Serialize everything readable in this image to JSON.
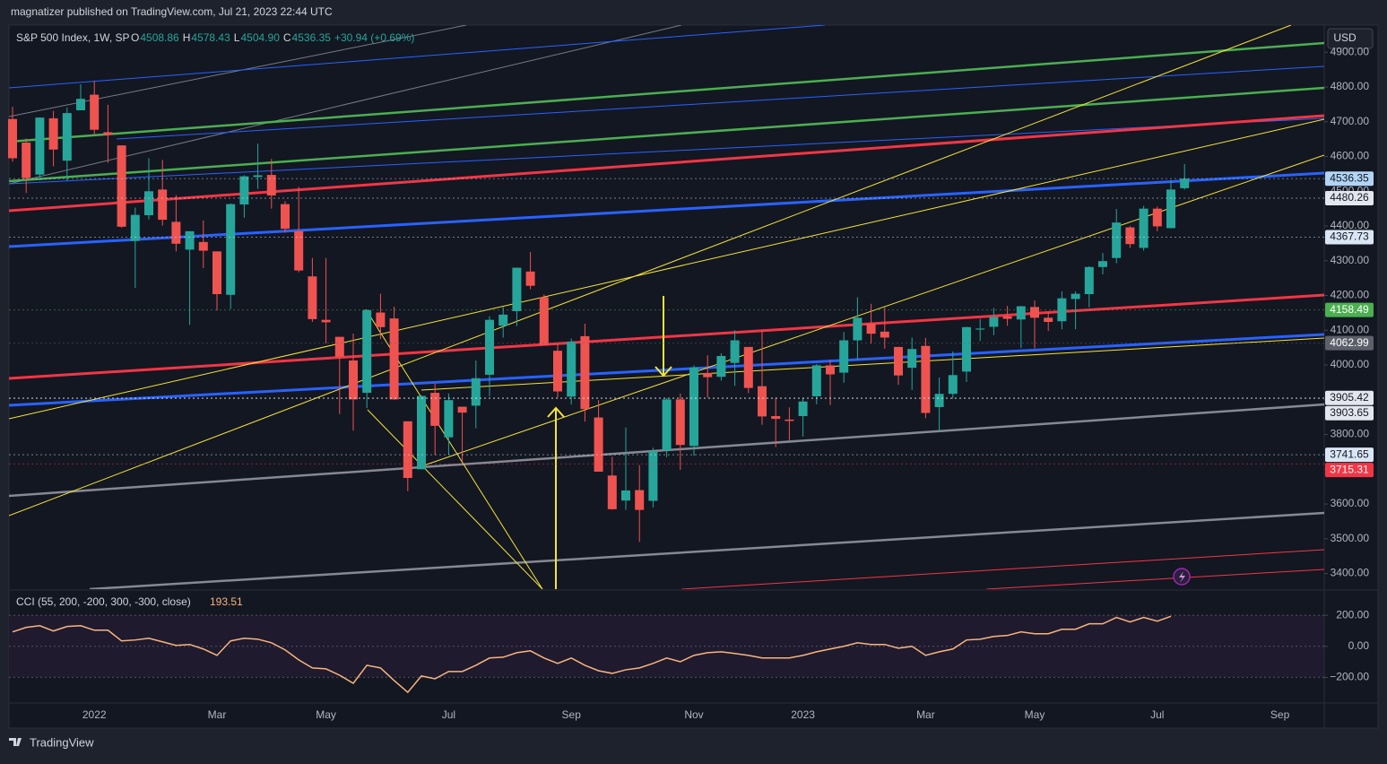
{
  "header": {
    "text": "magnatizer published on TradingView.com, Jul 21, 2023 22:44 UTC"
  },
  "brand": "TradingView",
  "chart_data": [
    {
      "type": "candlestick",
      "title": "S&P 500 Index, 1W, SP",
      "ohlc_legend": [
        {
          "key": "O",
          "value": "4508.86"
        },
        {
          "key": "H",
          "value": "4578.43"
        },
        {
          "key": "L",
          "value": "4504.90"
        },
        {
          "key": "C",
          "value": "4536.35"
        }
      ],
      "change": "+30.94 (+0.69%)",
      "currency": "USD",
      "categories": [
        null,
        null,
        null,
        null,
        null,
        null,
        "2022",
        null,
        null,
        null,
        null,
        null,
        null,
        null,
        null,
        "Mar",
        null,
        null,
        null,
        null,
        null,
        null,
        null,
        "May",
        null,
        null,
        null,
        null,
        null,
        null,
        null,
        null,
        "Jul",
        null,
        null,
        null,
        null,
        null,
        null,
        null,
        null,
        "Sep",
        null,
        null,
        null,
        null,
        null,
        null,
        null,
        null,
        "Nov",
        null,
        null,
        null,
        null,
        null,
        null,
        null,
        "2023",
        null,
        null,
        null,
        null,
        null,
        null,
        null,
        null,
        "Mar",
        null,
        null,
        null,
        null,
        null,
        null,
        null,
        "May",
        null,
        null,
        null,
        null,
        null,
        null,
        null,
        null,
        "Jul",
        null,
        null,
        null,
        null,
        null,
        null,
        null,
        null,
        "Sep",
        null,
        null,
        null
      ],
      "open": [
        4708,
        4640,
        4548,
        4710,
        4588,
        4733,
        4778,
        4670,
        4632,
        4357,
        4431,
        4505,
        4412,
        4332,
        4354,
        4327,
        4202,
        4462,
        4541,
        4547,
        4463,
        4385,
        4255,
        4130,
        4081,
        4013,
        3920,
        4151,
        4134,
        3838,
        3700,
        3920,
        3792,
        3880,
        3883,
        3972,
        4113,
        4155,
        4269,
        4195,
        4041,
        3909,
        4083,
        3849,
        3682,
        3610,
        3640,
        3609,
        3755,
        3901,
        3767,
        3977,
        3966,
        4006,
        4052,
        3939,
        3853,
        3843,
        3853,
        3910,
        3999,
        3978,
        4071,
        4119,
        4096,
        4052,
        3992,
        4055,
        3879,
        3917,
        3981,
        4102,
        4110,
        4140,
        4131,
        4167,
        4136,
        4126,
        4190,
        4204,
        4282,
        4308,
        4396,
        4337,
        4450,
        4394,
        4508.86,
        null,
        null,
        null,
        null,
        null,
        null,
        null,
        null,
        null,
        null
      ],
      "high": [
        4743,
        4652,
        4713,
        4731,
        4741,
        4808,
        4818,
        4749,
        4632,
        4453,
        4595,
        4590,
        4489,
        4385,
        4416,
        4327,
        4465,
        4546,
        4637,
        4593,
        4471,
        4513,
        4308,
        4308,
        4081,
        4090,
        4159,
        4205,
        4168,
        3838,
        3913,
        3946,
        3918,
        3880,
        4013,
        4140,
        4167,
        4280,
        4325,
        4203,
        4062,
        4076,
        4119,
        3899,
        3736,
        3820,
        3712,
        3762,
        3905,
        3918,
        3999,
        4028,
        4034,
        4100,
        4052,
        4101,
        3906,
        3878,
        3906,
        4003,
        4015,
        4095,
        4195,
        4176,
        4166,
        4052,
        4079,
        4078,
        3964,
        4039,
        4110,
        4133,
        4164,
        4170,
        4170,
        4186,
        4154,
        4212,
        4212,
        4284,
        4322,
        4449,
        4400,
        4458,
        4456,
        4532,
        4578.43,
        null,
        null,
        null,
        null,
        null,
        null,
        null,
        null,
        null,
        null
      ],
      "low": [
        4585,
        4495,
        4531,
        4572,
        4531,
        4733,
        4662,
        4582,
        4395,
        4222,
        4419,
        4401,
        4327,
        4115,
        4279,
        4157,
        4161,
        4424,
        4507,
        4450,
        4381,
        4267,
        4124,
        4062,
        3859,
        3811,
        3876,
        4075,
        3900,
        3637,
        3700,
        3741,
        3742,
        3721,
        3818,
        3910,
        4079,
        4112,
        4218,
        4057,
        3906,
        3886,
        3837,
        3693,
        3584,
        3583,
        3491,
        3590,
        3735,
        3698,
        3739,
        3906,
        3955,
        3940,
        3919,
        3828,
        3764,
        3783,
        3794,
        3887,
        3885,
        3949,
        4015,
        4061,
        4047,
        3943,
        3928,
        3847,
        3809,
        3903,
        3951,
        4069,
        4086,
        4113,
        4049,
        4048,
        4098,
        4103,
        4103,
        4166,
        4261,
        4293,
        4337,
        4329,
        4385,
        4393,
        4504.9,
        null,
        null,
        null,
        null,
        null,
        null,
        null,
        null,
        null,
        null
      ],
      "close": [
        4595,
        4538,
        4712,
        4620,
        4725,
        4766,
        4677,
        4662,
        4398,
        4432,
        4500,
        4418,
        4349,
        4385,
        4329,
        4204,
        4463,
        4543,
        4546,
        4488,
        4392,
        4272,
        4132,
        4123,
        4024,
        3901,
        4158,
        4109,
        3901,
        3675,
        3911,
        3825,
        3899,
        3863,
        3962,
        4130,
        4145,
        4280,
        4228,
        4057,
        3924,
        4067,
        3873,
        3693,
        3585,
        3639,
        3583,
        3752,
        3901,
        3770,
        3993,
        3965,
        4026,
        4071,
        3934,
        3852,
        3845,
        3839,
        3895,
        3999,
        3973,
        4071,
        4136,
        4090,
        4079,
        3970,
        4046,
        3862,
        3917,
        3971,
        4109,
        4105,
        4138,
        4133,
        4169,
        4136,
        4124,
        4192,
        4205,
        4282,
        4299,
        4410,
        4348,
        4450,
        4399,
        4505,
        4536.35,
        null,
        null,
        null,
        null,
        null,
        null,
        null,
        null,
        null,
        null
      ],
      "up_color": "#26a69a",
      "down_color": "#ef5350",
      "ylim": [
        3355,
        4973
      ],
      "yticks": [
        {
          "value": 3400,
          "label": "3400.00"
        },
        {
          "value": 3500,
          "label": "3500.00"
        },
        {
          "value": 3600,
          "label": "3600.00"
        },
        {
          "value": 3700,
          "label": "3700.00"
        },
        {
          "value": 3800,
          "label": "3800.00"
        },
        {
          "value": 3900,
          "label": "3900.00"
        },
        {
          "value": 4000,
          "label": "4000.00"
        },
        {
          "value": 4100,
          "label": "4100.00"
        },
        {
          "value": 4200,
          "label": "4200.00"
        },
        {
          "value": 4300,
          "label": "4300.00"
        },
        {
          "value": 4400,
          "label": "4400.00"
        },
        {
          "value": 4500,
          "label": "4500.00"
        },
        {
          "value": 4600,
          "label": "4600.00"
        },
        {
          "value": 4700,
          "label": "4700.00"
        },
        {
          "value": 4800,
          "label": "4800.00"
        },
        {
          "value": 4900,
          "label": "4900.00"
        }
      ],
      "price_markers": [
        {
          "value": 4536.35,
          "color": "#b2d4f5"
        },
        {
          "value": 4480.26,
          "color": "#e3e6ee"
        },
        {
          "value": 4367.73,
          "color": "#dbe6f5"
        },
        {
          "value": 4158.49,
          "color": "#4caf50"
        },
        {
          "value": 4062.99,
          "color": "#5d606b"
        },
        {
          "value": 3905.42,
          "color": "#e3e6ee"
        },
        {
          "value": 3903.65,
          "color": "#e3e6ee"
        },
        {
          "value": 3741.65,
          "color": "#dbe6f5"
        },
        {
          "value": 3715.31,
          "color": "#f23645"
        }
      ]
    },
    {
      "type": "line",
      "title": "CCI (55, 200, -200, 300, -300, close)",
      "last_value": 193.51,
      "color": "#f7b57d",
      "values": [
        93,
        122,
        133,
        99,
        128,
        133,
        104,
        104,
        35,
        41,
        52,
        29,
        6,
        12,
        -17,
        -58,
        35,
        52,
        46,
        23,
        -23,
        -87,
        -139,
        -145,
        -186,
        -238,
        -122,
        -139,
        -220,
        -296,
        -191,
        -209,
        -162,
        -162,
        -122,
        -75,
        -70,
        -41,
        -29,
        -75,
        -110,
        -75,
        -122,
        -157,
        -174,
        -151,
        -139,
        -110,
        -75,
        -99,
        -58,
        -41,
        -35,
        -46,
        -58,
        -75,
        -75,
        -75,
        -58,
        -35,
        -17,
        0,
        23,
        12,
        12,
        -12,
        0,
        -58,
        -35,
        -17,
        41,
        46,
        64,
        70,
        93,
        81,
        81,
        110,
        110,
        145,
        145,
        186,
        157,
        186,
        162,
        193.51,
        null,
        null,
        null,
        null,
        null,
        null,
        null,
        null,
        null,
        null,
        null
      ],
      "ylim": [
        -365,
        351
      ],
      "yticks": [
        {
          "value": 200,
          "label": "200.00"
        },
        {
          "value": 0,
          "label": "0.00"
        },
        {
          "value": -200,
          "label": "−200.00"
        }
      ]
    }
  ]
}
